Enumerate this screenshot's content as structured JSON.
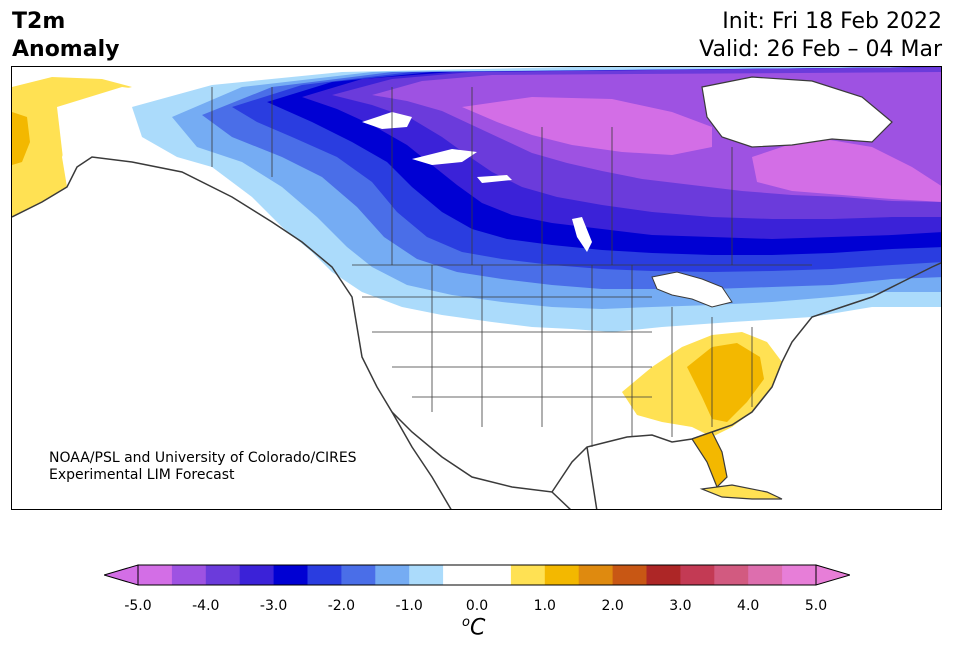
{
  "header": {
    "title_line1": "T2m",
    "title_line2": "Anomaly",
    "init": "Init: Fri 18 Feb 2022",
    "valid": "Valid: 26 Feb – 04 Mar"
  },
  "credit": {
    "line1": "NOAA/PSL and University of Colorado/CIRES",
    "line2": "Experimental LIM Forecast"
  },
  "colorbar": {
    "unit_base": "C",
    "unit_sup": "o",
    "ticks": [
      "-5.0",
      "-4.0",
      "-3.0",
      "-2.0",
      "-1.0",
      "0.0",
      "1.0",
      "2.0",
      "3.0",
      "4.0",
      "5.0"
    ],
    "colors": [
      "#d36ee6",
      "#9e52e2",
      "#6b3bdb",
      "#3b22d8",
      "#0000d3",
      "#2a3de0",
      "#4a6ee8",
      "#75acf3",
      "#abdbfb",
      "#ffffff",
      "#ffffff",
      "#ffe153",
      "#f3b800",
      "#df8a0f",
      "#c85714",
      "#ad2626",
      "#c33a54",
      "#d25a80",
      "#dd6eae",
      "#e77ed8"
    ],
    "under_color": "#d36ee6",
    "over_color": "#e77ed8"
  },
  "map_colors": {
    "land_outline": "#3a3a3a",
    "neg1": "#abdbfb",
    "neg2": "#75acf3",
    "neg3": "#4a6ee8",
    "neg4": "#2a3de0",
    "neg5": "#0000d3",
    "neg6": "#3b22d8",
    "neg7": "#6b3bdb",
    "neg8": "#9e52e2",
    "neg9": "#d36ee6",
    "pos1": "#ffe153",
    "pos2": "#f3b800",
    "pos3": "#df8a0f"
  }
}
